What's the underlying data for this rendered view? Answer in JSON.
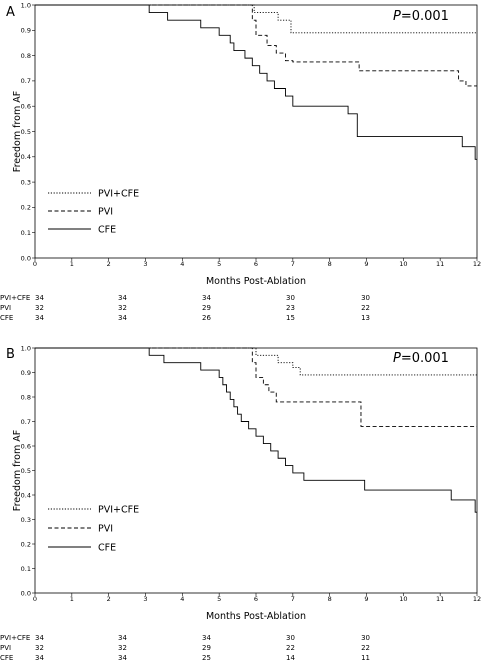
{
  "chart_data": [
    {
      "type": "line",
      "step": true,
      "panel_label": "A",
      "p_value": {
        "label": "P",
        "value": "=0.001"
      },
      "xlabel": "Months Post-Ablation",
      "ylabel": "Freedom from AF",
      "xlim": [
        0,
        12
      ],
      "ylim": [
        0,
        1
      ],
      "x_ticks": [
        "0",
        "1",
        "2",
        "3",
        "4",
        "5",
        "6",
        "7",
        "8",
        "9",
        "10",
        "11",
        "12"
      ],
      "y_ticks": [
        "0.0",
        "0.1",
        "0.2",
        "0.3",
        "0.4",
        "0.5",
        "0.6",
        "0.7",
        "0.8",
        "0.9",
        "1.0"
      ],
      "legend_position": "bottom-left",
      "series": [
        {
          "name": "PVI+CFE",
          "style": "dotted",
          "points": [
            [
              0,
              1.0
            ],
            [
              5.95,
              1.0
            ],
            [
              5.95,
              0.97
            ],
            [
              6.6,
              0.97
            ],
            [
              6.6,
              0.94
            ],
            [
              6.95,
              0.94
            ],
            [
              6.95,
              0.89
            ],
            [
              12,
              0.89
            ]
          ]
        },
        {
          "name": "PVI",
          "style": "dashed",
          "points": [
            [
              0,
              1.0
            ],
            [
              5.9,
              1.0
            ],
            [
              5.9,
              0.94
            ],
            [
              6.0,
              0.94
            ],
            [
              6.0,
              0.88
            ],
            [
              6.3,
              0.88
            ],
            [
              6.3,
              0.84
            ],
            [
              6.55,
              0.84
            ],
            [
              6.55,
              0.81
            ],
            [
              6.8,
              0.81
            ],
            [
              6.8,
              0.78
            ],
            [
              7.0,
              0.78
            ],
            [
              7.0,
              0.775
            ],
            [
              8.8,
              0.775
            ],
            [
              8.8,
              0.74
            ],
            [
              11.5,
              0.74
            ],
            [
              11.5,
              0.7
            ],
            [
              11.7,
              0.7
            ],
            [
              11.7,
              0.68
            ],
            [
              12,
              0.68
            ]
          ]
        },
        {
          "name": "CFE",
          "style": "solid",
          "points": [
            [
              0,
              1.0
            ],
            [
              3.1,
              1.0
            ],
            [
              3.1,
              0.97
            ],
            [
              3.6,
              0.97
            ],
            [
              3.6,
              0.94
            ],
            [
              4.5,
              0.94
            ],
            [
              4.5,
              0.91
            ],
            [
              5.0,
              0.91
            ],
            [
              5.0,
              0.88
            ],
            [
              5.3,
              0.88
            ],
            [
              5.3,
              0.85
            ],
            [
              5.4,
              0.85
            ],
            [
              5.4,
              0.82
            ],
            [
              5.7,
              0.82
            ],
            [
              5.7,
              0.79
            ],
            [
              5.9,
              0.79
            ],
            [
              5.9,
              0.76
            ],
            [
              6.1,
              0.76
            ],
            [
              6.1,
              0.73
            ],
            [
              6.3,
              0.73
            ],
            [
              6.3,
              0.7
            ],
            [
              6.5,
              0.7
            ],
            [
              6.5,
              0.67
            ],
            [
              6.8,
              0.67
            ],
            [
              6.8,
              0.64
            ],
            [
              7.0,
              0.64
            ],
            [
              7.0,
              0.6
            ],
            [
              8.5,
              0.6
            ],
            [
              8.5,
              0.57
            ],
            [
              8.75,
              0.57
            ],
            [
              8.75,
              0.48
            ],
            [
              11.6,
              0.48
            ],
            [
              11.6,
              0.44
            ],
            [
              11.95,
              0.44
            ],
            [
              11.95,
              0.39
            ],
            [
              12,
              0.39
            ]
          ]
        }
      ],
      "risk_table": {
        "times": [
          "0",
          "3",
          "6",
          "9",
          "12"
        ],
        "rows": [
          {
            "label": "PVI+CFE",
            "values": [
              "34",
              "34",
              "34",
              "30",
              "30"
            ]
          },
          {
            "label": "PVI",
            "values": [
              "32",
              "32",
              "29",
              "23",
              "22"
            ]
          },
          {
            "label": "CFE",
            "values": [
              "34",
              "34",
              "26",
              "15",
              "13"
            ]
          }
        ]
      }
    },
    {
      "type": "line",
      "step": true,
      "panel_label": "B",
      "p_value": {
        "label": "P",
        "value": "=0.001"
      },
      "xlabel": "Months Post-Ablation",
      "ylabel": "Freedom from AF",
      "xlim": [
        0,
        12
      ],
      "ylim": [
        0,
        1
      ],
      "x_ticks": [
        "0",
        "1",
        "2",
        "3",
        "4",
        "5",
        "6",
        "7",
        "8",
        "9",
        "10",
        "11",
        "12"
      ],
      "y_ticks": [
        "0.0",
        "0.1",
        "0.2",
        "0.3",
        "0.4",
        "0.5",
        "0.6",
        "0.7",
        "0.8",
        "0.9",
        "1.0"
      ],
      "legend_position": "bottom-left",
      "series": [
        {
          "name": "PVI+CFE",
          "style": "dotted",
          "points": [
            [
              0,
              1.0
            ],
            [
              6.0,
              1.0
            ],
            [
              6.0,
              0.97
            ],
            [
              6.6,
              0.97
            ],
            [
              6.6,
              0.94
            ],
            [
              7.0,
              0.94
            ],
            [
              7.0,
              0.92
            ],
            [
              7.2,
              0.92
            ],
            [
              7.2,
              0.89
            ],
            [
              12,
              0.89
            ]
          ]
        },
        {
          "name": "PVI",
          "style": "dashed",
          "points": [
            [
              0,
              1.0
            ],
            [
              5.9,
              1.0
            ],
            [
              5.9,
              0.94
            ],
            [
              6.0,
              0.94
            ],
            [
              6.0,
              0.88
            ],
            [
              6.2,
              0.88
            ],
            [
              6.2,
              0.85
            ],
            [
              6.35,
              0.85
            ],
            [
              6.35,
              0.82
            ],
            [
              6.55,
              0.82
            ],
            [
              6.55,
              0.78
            ],
            [
              8.85,
              0.78
            ],
            [
              8.85,
              0.68
            ],
            [
              12,
              0.68
            ]
          ]
        },
        {
          "name": "CFE",
          "style": "solid",
          "points": [
            [
              0,
              1.0
            ],
            [
              3.1,
              1.0
            ],
            [
              3.1,
              0.97
            ],
            [
              3.5,
              0.97
            ],
            [
              3.5,
              0.94
            ],
            [
              4.5,
              0.94
            ],
            [
              4.5,
              0.91
            ],
            [
              5.0,
              0.91
            ],
            [
              5.0,
              0.88
            ],
            [
              5.1,
              0.88
            ],
            [
              5.1,
              0.85
            ],
            [
              5.2,
              0.85
            ],
            [
              5.2,
              0.82
            ],
            [
              5.3,
              0.82
            ],
            [
              5.3,
              0.79
            ],
            [
              5.4,
              0.79
            ],
            [
              5.4,
              0.76
            ],
            [
              5.5,
              0.76
            ],
            [
              5.5,
              0.73
            ],
            [
              5.6,
              0.73
            ],
            [
              5.6,
              0.7
            ],
            [
              5.8,
              0.7
            ],
            [
              5.8,
              0.67
            ],
            [
              6.0,
              0.67
            ],
            [
              6.0,
              0.64
            ],
            [
              6.2,
              0.64
            ],
            [
              6.2,
              0.61
            ],
            [
              6.4,
              0.61
            ],
            [
              6.4,
              0.58
            ],
            [
              6.6,
              0.58
            ],
            [
              6.6,
              0.55
            ],
            [
              6.8,
              0.55
            ],
            [
              6.8,
              0.52
            ],
            [
              7.0,
              0.52
            ],
            [
              7.0,
              0.49
            ],
            [
              7.3,
              0.49
            ],
            [
              7.3,
              0.46
            ],
            [
              8.95,
              0.46
            ],
            [
              8.95,
              0.42
            ],
            [
              11.3,
              0.42
            ],
            [
              11.3,
              0.38
            ],
            [
              11.95,
              0.38
            ],
            [
              11.95,
              0.33
            ],
            [
              12,
              0.33
            ]
          ]
        }
      ],
      "risk_table": {
        "times": [
          "0",
          "3",
          "6",
          "9",
          "12"
        ],
        "rows": [
          {
            "label": "PVI+CFE",
            "values": [
              "34",
              "34",
              "34",
              "30",
              "30"
            ]
          },
          {
            "label": "PVI",
            "values": [
              "32",
              "32",
              "29",
              "22",
              "22"
            ]
          },
          {
            "label": "CFE",
            "values": [
              "34",
              "34",
              "25",
              "14",
              "11"
            ]
          }
        ]
      }
    }
  ]
}
